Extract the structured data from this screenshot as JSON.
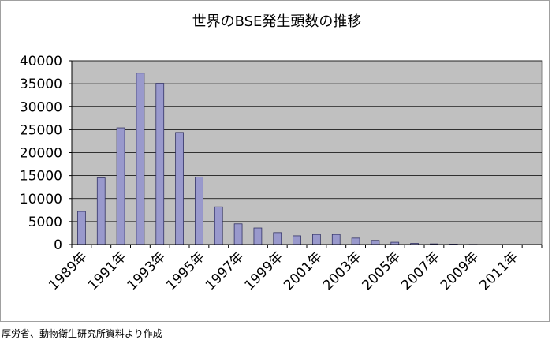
{
  "chart_data": {
    "type": "bar",
    "title": "世界のBSE発生頭数の推移",
    "xlabel": "",
    "ylabel": "",
    "ylim": [
      0,
      40000
    ],
    "yticks": [
      "0",
      "5000",
      "10000",
      "15000",
      "20000",
      "25000",
      "30000",
      "35000",
      "40000"
    ],
    "categories": [
      "1989年",
      "1990年",
      "1991年",
      "1992年",
      "1993年",
      "1994年",
      "1995年",
      "1996年",
      "1997年",
      "1998年",
      "1999年",
      "2000年",
      "2001年",
      "2002年",
      "2003年",
      "2004年",
      "2005年",
      "2006年",
      "2007年",
      "2008年",
      "2009年",
      "2010年",
      "2011年",
      "2012年"
    ],
    "xtick_labels": [
      "1989年",
      "1991年",
      "1993年",
      "1995年",
      "1997年",
      "1999年",
      "2001年",
      "2003年",
      "2005年",
      "2007年",
      "2009年",
      "2011年"
    ],
    "values": [
      7200,
      14500,
      25400,
      37300,
      35100,
      24400,
      14700,
      8200,
      4500,
      3600,
      2600,
      1900,
      2200,
      2200,
      1400,
      900,
      500,
      250,
      150,
      100,
      40,
      0,
      0,
      0
    ],
    "grid": true,
    "legend": "none",
    "colors": {
      "bar_fill": "#9999cc",
      "bar_stroke": "#333366",
      "plot_background": "#c0c0c0",
      "gridline": "#000000"
    }
  },
  "source_note": "厚労省、動物衛生研究所資料より作成"
}
